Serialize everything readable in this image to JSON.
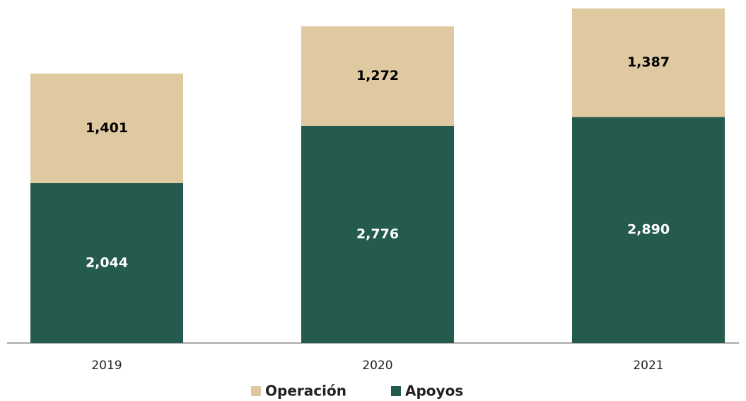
{
  "chart_data": {
    "type": "bar",
    "stacked": true,
    "categories": [
      "2019",
      "2020",
      "2021"
    ],
    "series": [
      {
        "name": "Apoyos",
        "color": "#245b4e",
        "values": [
          2044,
          2776,
          2890
        ],
        "value_labels": [
          "2,044",
          "2,776",
          "2,890"
        ],
        "label_color": "#ffffff"
      },
      {
        "name": "Operación",
        "color": "#dfc9a0",
        "values": [
          1401,
          1272,
          1387
        ],
        "value_labels": [
          "1,401",
          "1,272",
          "1,387"
        ],
        "label_color": "#000000"
      }
    ],
    "legend": "bottom"
  }
}
